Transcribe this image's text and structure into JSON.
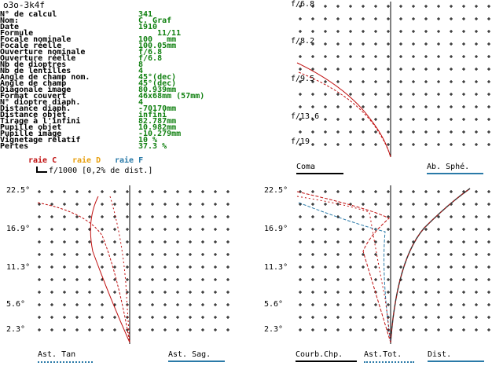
{
  "window_title": "o3o-3k4f",
  "params": [
    {
      "label": "N° de calcul",
      "value": "341"
    },
    {
      "label": "Nom:",
      "value": "C. Graf"
    },
    {
      "label": "Date",
      "value": "1910"
    },
    {
      "label": "Formule",
      "value": "11/11"
    },
    {
      "label": "Focale nominale",
      "value": "100   mm"
    },
    {
      "label": "Focale réelle",
      "value": "100.05mm"
    },
    {
      "label": "Ouverture nominale",
      "value": "f/6.8"
    },
    {
      "label": "Ouverture réelle",
      "value": "f/6.8"
    },
    {
      "label": "Nb de dioptres",
      "value": "8"
    },
    {
      "label": "Nb de lentilles",
      "value": "4"
    },
    {
      "label": "Angle de champ nom.",
      "value": "45°(dec)"
    },
    {
      "label": "Angle de champ",
      "value": "45°(dec)"
    },
    {
      "label": "Diagonale image",
      "value": "80.939mm"
    },
    {
      "label": "Format couvert",
      "value": "46x68mm (57mm)"
    },
    {
      "label": "N° dioptre diaph.",
      "value": "4"
    },
    {
      "label": "Distance diaph.",
      "value": "-70170mm"
    },
    {
      "label": "Distance objet",
      "value": "infini"
    },
    {
      "label": "Tirage à l'infini",
      "value": "82.787mm"
    },
    {
      "label": "Pupille objet",
      "value": "10.982mm"
    },
    {
      "label": "Pupille image",
      "value": "-10.279mm"
    },
    {
      "label": "Vignetage relatif",
      "value": "10 %"
    },
    {
      "label": "Pertes",
      "value": "37.3 %"
    }
  ],
  "legend": {
    "raie_c": "raie C",
    "raie_d": "raie D",
    "raie_f": "raie F",
    "scale": "f/1000 [0,2% de dist.]",
    "color_c": "#c01010",
    "color_d": "#e8a010",
    "color_f": "#2a7aa8"
  },
  "spherical_panel": {
    "y_labels": [
      "f/6.8",
      "f/8.2",
      "f/9.5",
      "f/13.6",
      "f/19"
    ],
    "left_label": "Coma",
    "right_label": "Ab. Sphé."
  },
  "astig_panel": {
    "y_labels": [
      "22.5°",
      "16.9°",
      "11.3°",
      "5.6°",
      "2.3°"
    ],
    "left_label": "Ast. Tan",
    "right_label": "Ast. Sag."
  },
  "field_panel": {
    "y_labels": [
      "22.5°",
      "16.9°",
      "11.3°",
      "5.6°",
      "2.3°"
    ],
    "label_1": "Courb.Chp.",
    "label_2": "Ast.Tot.",
    "label_3": "Dist."
  }
}
